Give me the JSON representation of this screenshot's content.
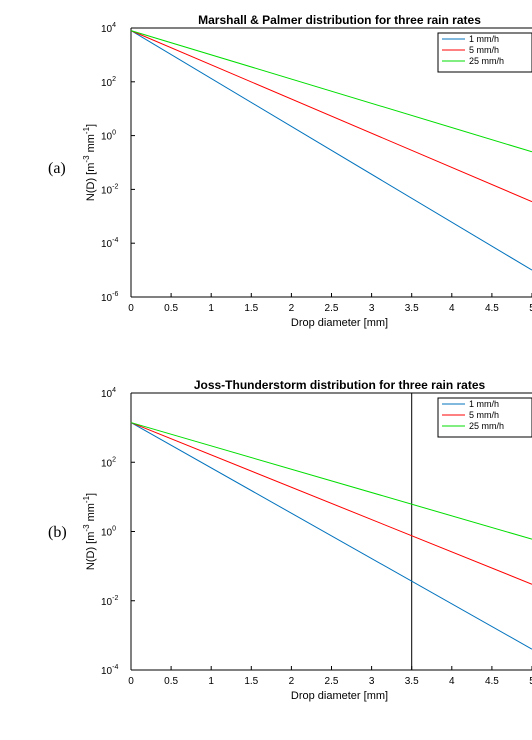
{
  "panel_labels": [
    "(a)",
    "(b)"
  ],
  "chart_data": [
    {
      "type": "line",
      "title": "Marshall & Palmer distribution for three rain rates",
      "xlabel": "Drop diameter [mm]",
      "ylabel": "N(D) [m-3 mm-1]",
      "ylabel_parts": {
        "base": "N(D) [m",
        "sup1": "-3",
        "mid": " mm",
        "sup2": "-1",
        "end": "]"
      },
      "xlim": [
        0,
        5
      ],
      "ylim": [
        1e-06,
        10000.0
      ],
      "yscale": "log",
      "x_ticks": [
        0,
        0.5,
        1,
        1.5,
        2,
        2.5,
        3,
        3.5,
        4,
        4.5,
        5
      ],
      "x_tick_labels": [
        "0",
        "0.5",
        "1",
        "1.5",
        "2",
        "2.5",
        "3",
        "3.5",
        "4",
        "4.5",
        "5"
      ],
      "y_ticks": [
        1e-06,
        0.0001,
        0.01,
        1,
        100,
        10000
      ],
      "y_tick_labels": [
        {
          "base": "10",
          "exp": "-6"
        },
        {
          "base": "10",
          "exp": "-4"
        },
        {
          "base": "10",
          "exp": "-2"
        },
        {
          "base": "10",
          "exp": "0"
        },
        {
          "base": "10",
          "exp": "2"
        },
        {
          "base": "10",
          "exp": "4"
        }
      ],
      "legend_position": "top-right",
      "series": [
        {
          "name": "1 mm/h",
          "color": "#0072BD",
          "x": [
            0,
            5
          ],
          "y": [
            8000,
            1e-05
          ]
        },
        {
          "name": "5 mm/h",
          "color": "#FF0000",
          "x": [
            0,
            5
          ],
          "y": [
            8000,
            0.0035
          ]
        },
        {
          "name": "25 mm/h",
          "color": "#00DD00",
          "x": [
            0,
            5
          ],
          "y": [
            8000,
            0.25
          ]
        }
      ],
      "vlines": []
    },
    {
      "type": "line",
      "title": "Joss-Thunderstorm distribution for three rain rates",
      "xlabel": "Drop diameter [mm]",
      "ylabel": "N(D) [m-3 mm-1]",
      "ylabel_parts": {
        "base": "N(D) [m",
        "sup1": "-3",
        "mid": " mm",
        "sup2": "-1",
        "end": "]"
      },
      "xlim": [
        0,
        5
      ],
      "ylim": [
        0.0001,
        10000.0
      ],
      "yscale": "log",
      "x_ticks": [
        0,
        0.5,
        1,
        1.5,
        2,
        2.5,
        3,
        3.5,
        4,
        4.5,
        5
      ],
      "x_tick_labels": [
        "0",
        "0.5",
        "1",
        "1.5",
        "2",
        "2.5",
        "3",
        "3.5",
        "4",
        "4.5",
        "5"
      ],
      "y_ticks": [
        0.0001,
        0.01,
        1,
        100,
        10000
      ],
      "y_tick_labels": [
        {
          "base": "10",
          "exp": "-4"
        },
        {
          "base": "10",
          "exp": "-2"
        },
        {
          "base": "10",
          "exp": "0"
        },
        {
          "base": "10",
          "exp": "2"
        },
        {
          "base": "10",
          "exp": "4"
        }
      ],
      "legend_position": "top-right",
      "series": [
        {
          "name": "1 mm/h",
          "color": "#0072BD",
          "x": [
            0,
            5
          ],
          "y": [
            1400,
            0.0004
          ]
        },
        {
          "name": "5 mm/h",
          "color": "#FF0000",
          "x": [
            0,
            5
          ],
          "y": [
            1400,
            0.03
          ]
        },
        {
          "name": "25 mm/h",
          "color": "#00DD00",
          "x": [
            0,
            5
          ],
          "y": [
            1400,
            0.6
          ]
        }
      ],
      "vlines": [
        3.5
      ]
    }
  ]
}
